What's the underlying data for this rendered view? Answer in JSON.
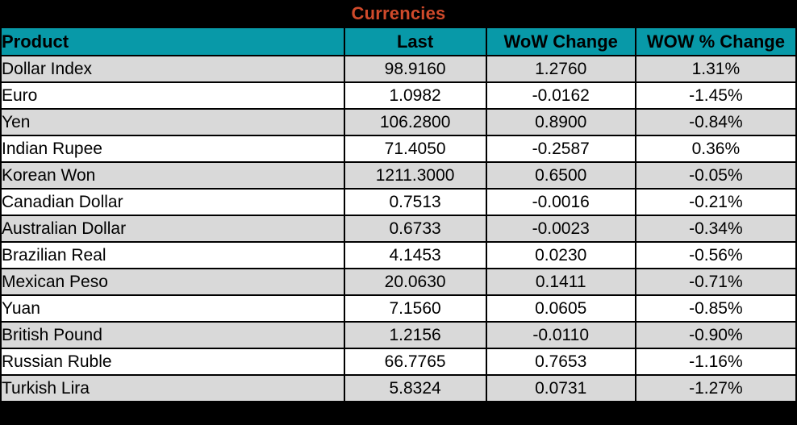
{
  "title": "Currencies",
  "colors": {
    "title_bar_bg": "#000000",
    "title_text": "#D04A2B",
    "header_bg": "#0899A8",
    "row_even_bg": "#D9D9D9",
    "row_odd_bg": "#FFFFFF",
    "border": "#000000",
    "text": "#000000"
  },
  "chart_data": {
    "type": "table",
    "title": "Currencies",
    "columns": [
      "Product",
      "Last",
      "WoW Change",
      "WOW % Change"
    ],
    "rows": [
      [
        "Dollar Index",
        "98.9160",
        "1.2760",
        "1.31%"
      ],
      [
        "Euro",
        "1.0982",
        "-0.0162",
        "-1.45%"
      ],
      [
        "Yen",
        "106.2800",
        "0.8900",
        "-0.84%"
      ],
      [
        "Indian Rupee",
        "71.4050",
        "-0.2587",
        "0.36%"
      ],
      [
        "Korean Won",
        "1211.3000",
        "0.6500",
        "-0.05%"
      ],
      [
        "Canadian Dollar",
        "0.7513",
        "-0.0016",
        "-0.21%"
      ],
      [
        "Australian Dollar",
        "0.6733",
        "-0.0023",
        "-0.34%"
      ],
      [
        "Brazilian Real",
        "4.1453",
        "0.0230",
        "-0.56%"
      ],
      [
        "Mexican Peso",
        "20.0630",
        "0.1411",
        "-0.71%"
      ],
      [
        "Yuan",
        "7.1560",
        "0.0605",
        "-0.85%"
      ],
      [
        "British Pound",
        "1.2156",
        "-0.0110",
        "-0.90%"
      ],
      [
        "Russian Ruble",
        "66.7765",
        "0.7653",
        "-1.16%"
      ],
      [
        "Turkish Lira",
        "5.8324",
        "0.0731",
        "-1.27%"
      ]
    ],
    "layout": {
      "alternating_row_shading": true,
      "first_data_row_shaded": true,
      "numeric_alignment": "center",
      "product_alignment": "left"
    }
  }
}
